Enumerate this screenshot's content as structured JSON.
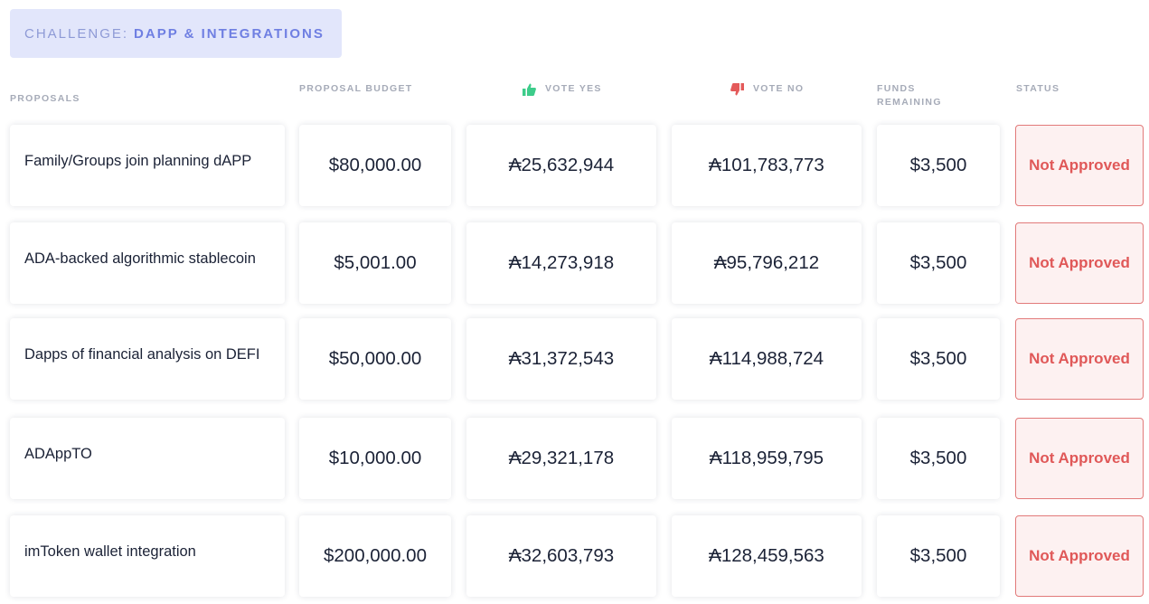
{
  "challenge": {
    "prefix": "CHALLENGE:",
    "name": "DAPP & INTEGRATIONS"
  },
  "headers": {
    "proposals": "PROPOSALS",
    "budget": "PROPOSAL BUDGET",
    "vote_yes": "VOTE YES",
    "vote_no": "VOTE NO",
    "funds_line1": "FUNDS",
    "funds_line2": "REMAINING",
    "status": "STATUS"
  },
  "icons": {
    "vote_yes": "thumbs-up-icon",
    "vote_no": "thumbs-down-icon"
  },
  "colors": {
    "yes": "#3dcc8a",
    "no": "#e45a5a",
    "accent": "#6f7fe2",
    "status_text": "#e05858"
  },
  "rows": [
    {
      "name": "Family/Groups join planning dAPP",
      "budget": "$80,000.00",
      "yes": "₳25,632,944",
      "no": "₳101,783,773",
      "funds": "$3,500",
      "status": "Not Approved"
    },
    {
      "name": "ADA-backed algorithmic stablecoin",
      "budget": "$5,001.00",
      "yes": "₳14,273,918",
      "no": "₳95,796,212",
      "funds": "$3,500",
      "status": "Not Approved"
    },
    {
      "name": "Dapps of financial analysis on DEFI",
      "budget": "$50,000.00",
      "yes": "₳31,372,543",
      "no": "₳114,988,724",
      "funds": "$3,500",
      "status": "Not Approved"
    },
    {
      "name": "ADAppTO",
      "budget": "$10,000.00",
      "yes": "₳29,321,178",
      "no": "₳118,959,795",
      "funds": "$3,500",
      "status": "Not Approved"
    },
    {
      "name": "imToken wallet integration",
      "budget": "$200,000.00",
      "yes": "₳32,603,793",
      "no": "₳128,459,563",
      "funds": "$3,500",
      "status": "Not Approved"
    }
  ]
}
